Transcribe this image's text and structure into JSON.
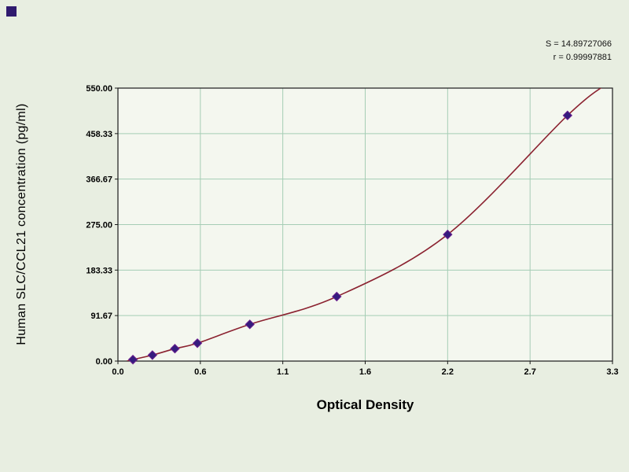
{
  "window": {
    "background": "#e8eee1"
  },
  "corner_marker": {
    "color": "#2f1a6e"
  },
  "annotations": {
    "line1": "S = 14.89727066",
    "line2": "r = 0.99997881"
  },
  "chart_data": {
    "type": "scatter",
    "title": "",
    "xlabel": "Optical Density",
    "ylabel": "Human SLC/CCL21 concentration (pg/ml)",
    "xlim": [
      0,
      3.3
    ],
    "ylim": [
      0,
      550
    ],
    "grid": true,
    "legend": "none",
    "x_ticks": [
      0,
      0.55,
      1.1,
      1.65,
      2.2,
      2.75,
      3.3
    ],
    "x_tick_labels": [
      "0.0",
      "0.6",
      "1.1",
      "1.6",
      "2.2",
      "2.7",
      "3.3"
    ],
    "y_ticks": [
      0,
      91.67,
      183.33,
      275.0,
      366.67,
      458.33,
      550.0
    ],
    "y_tick_labels": [
      "0.00",
      "91.67",
      "183.33",
      "275.00",
      "366.67",
      "458.33",
      "550.00"
    ],
    "points": [
      [
        0.1,
        3
      ],
      [
        0.23,
        12
      ],
      [
        0.38,
        25
      ],
      [
        0.53,
        36
      ],
      [
        0.88,
        74
      ],
      [
        1.46,
        130
      ],
      [
        2.2,
        255
      ],
      [
        3.0,
        495
      ]
    ],
    "curve_anchor_points": [
      [
        0.06,
        0
      ],
      [
        0.1,
        3
      ],
      [
        0.23,
        12
      ],
      [
        0.38,
        25
      ],
      [
        0.53,
        36
      ],
      [
        0.88,
        74
      ],
      [
        1.46,
        130
      ],
      [
        2.2,
        255
      ],
      [
        3.0,
        495
      ],
      [
        3.27,
        560
      ]
    ],
    "colors": {
      "plot_bg": "#f4f7ef",
      "grid": "#a5cdb5",
      "axis": "#1a1a1a",
      "curve": "#8b2230",
      "marker_fill": "#351c7e",
      "marker_stroke": "#6b1f8f"
    },
    "marker": {
      "shape": "diamond",
      "size": 11
    }
  }
}
